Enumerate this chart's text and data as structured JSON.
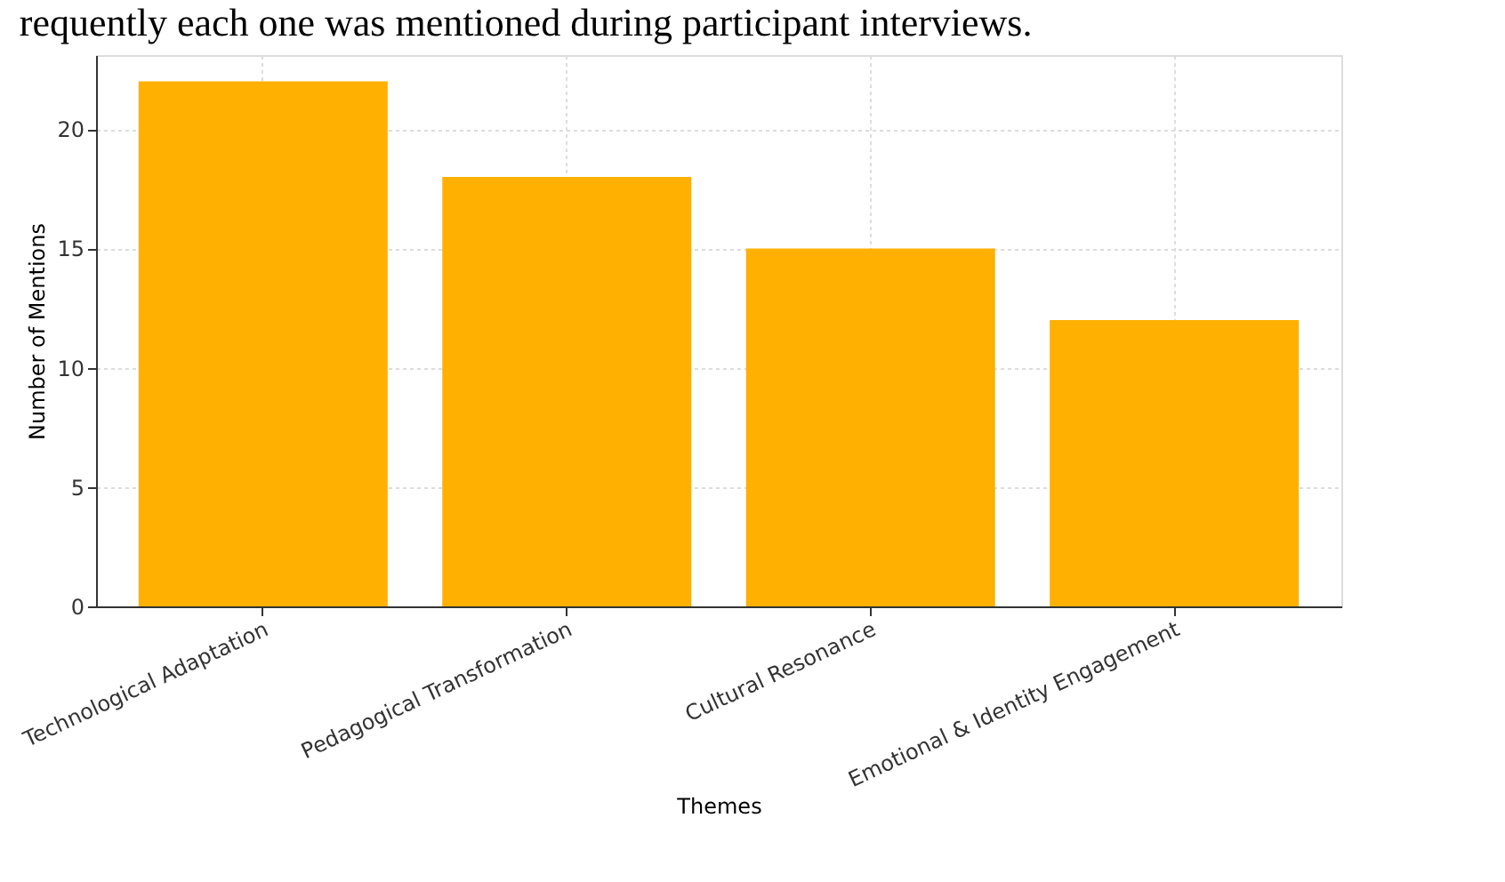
{
  "chart_data": {
    "type": "bar",
    "title": "requently each one was mentioned during participant interviews.",
    "xlabel": "Themes",
    "ylabel": "Number of Mentions",
    "categories": [
      "Technological Adaptation",
      "Pedagogical Transformation",
      "Cultural Resonance",
      "Emotional & Identity Engagement"
    ],
    "values": [
      22,
      18,
      15,
      12
    ],
    "color": "#ffb000",
    "ylim": [
      0,
      23.1
    ],
    "yticks": [
      0,
      5,
      10,
      15,
      20
    ],
    "grid": true
  }
}
